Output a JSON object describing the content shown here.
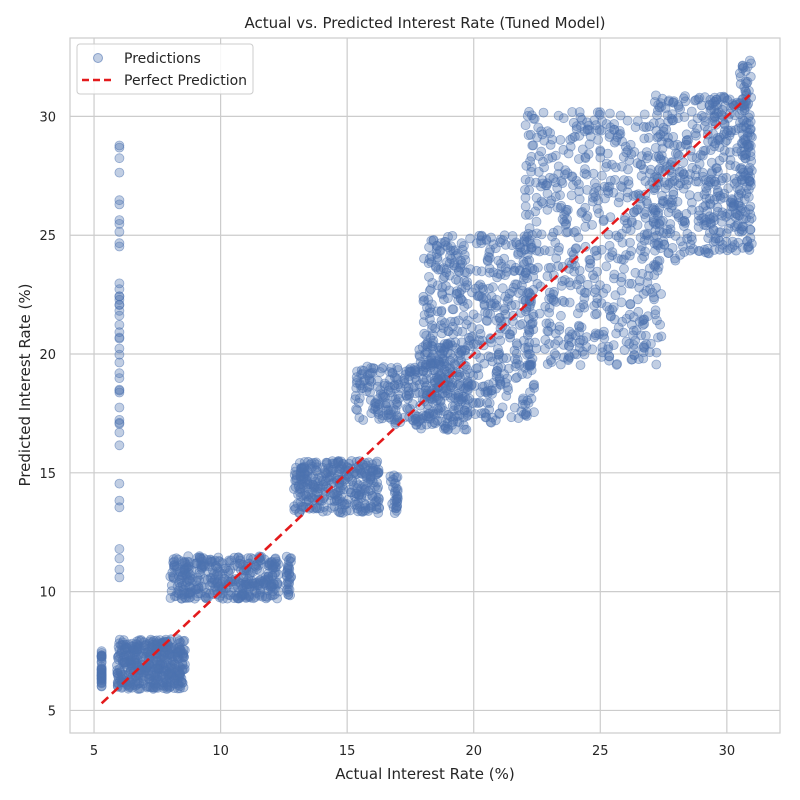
{
  "chart_data": {
    "type": "scatter",
    "title": "Actual vs. Predicted Interest Rate (Tuned Model)",
    "xlabel": "Actual Interest Rate (%)",
    "ylabel": "Predicted Interest Rate (%)",
    "xlim": [
      4.05,
      32.1
    ],
    "ylim": [
      4.05,
      33.3
    ],
    "xticks": [
      5,
      10,
      15,
      20,
      25,
      30
    ],
    "yticks": [
      5,
      10,
      15,
      20,
      25,
      30
    ],
    "grid": true,
    "legend_position": "top-left",
    "series": [
      {
        "name": "Predictions",
        "type": "scatter",
        "color": "#4c72b0",
        "opacity": 0.35,
        "clusters": [
          {
            "x": [
              5.3,
              5.3
            ],
            "y": [
              6.0,
              7.5
            ],
            "n": 40
          },
          {
            "x": [
              5.9,
              8.6
            ],
            "y": [
              5.9,
              8.0
            ],
            "n": 420
          },
          {
            "x": [
              6.0,
              6.0
            ],
            "y": [
              9.9,
              29.3
            ],
            "n": 45
          },
          {
            "x": [
              8.0,
              12.3
            ],
            "y": [
              9.7,
              11.5
            ],
            "n": 360
          },
          {
            "x": [
              12.6,
              12.8
            ],
            "y": [
              9.8,
              11.5
            ],
            "n": 30
          },
          {
            "x": [
              12.9,
              16.3
            ],
            "y": [
              13.3,
              15.5
            ],
            "n": 320
          },
          {
            "x": [
              16.7,
              17.0
            ],
            "y": [
              13.3,
              15.1
            ],
            "n": 30
          },
          {
            "x": [
              15.3,
              17.8
            ],
            "y": [
              17.0,
              19.5
            ],
            "n": 160
          },
          {
            "x": [
              17.8,
              19.8
            ],
            "y": [
              16.8,
              20.5
            ],
            "n": 160
          },
          {
            "x": [
              18.0,
              22.4
            ],
            "y": [
              17.1,
              25.0
            ],
            "n": 520
          },
          {
            "x": [
              22.0,
              27.5
            ],
            "y": [
              19.5,
              30.2
            ],
            "n": 600
          },
          {
            "x": [
              27.1,
              29.3
            ],
            "y": [
              23.9,
              30.9
            ],
            "n": 220
          },
          {
            "x": [
              29.3,
              31.0
            ],
            "y": [
              24.3,
              30.9
            ],
            "n": 240
          },
          {
            "x": [
              30.5,
              31.0
            ],
            "y": [
              27.0,
              32.4
            ],
            "n": 60
          }
        ]
      },
      {
        "name": "Perfect Prediction",
        "type": "line",
        "color": "#e31a1c",
        "dashed": true,
        "x": [
          5.3,
          30.9
        ],
        "y": [
          5.3,
          30.9
        ]
      }
    ]
  }
}
